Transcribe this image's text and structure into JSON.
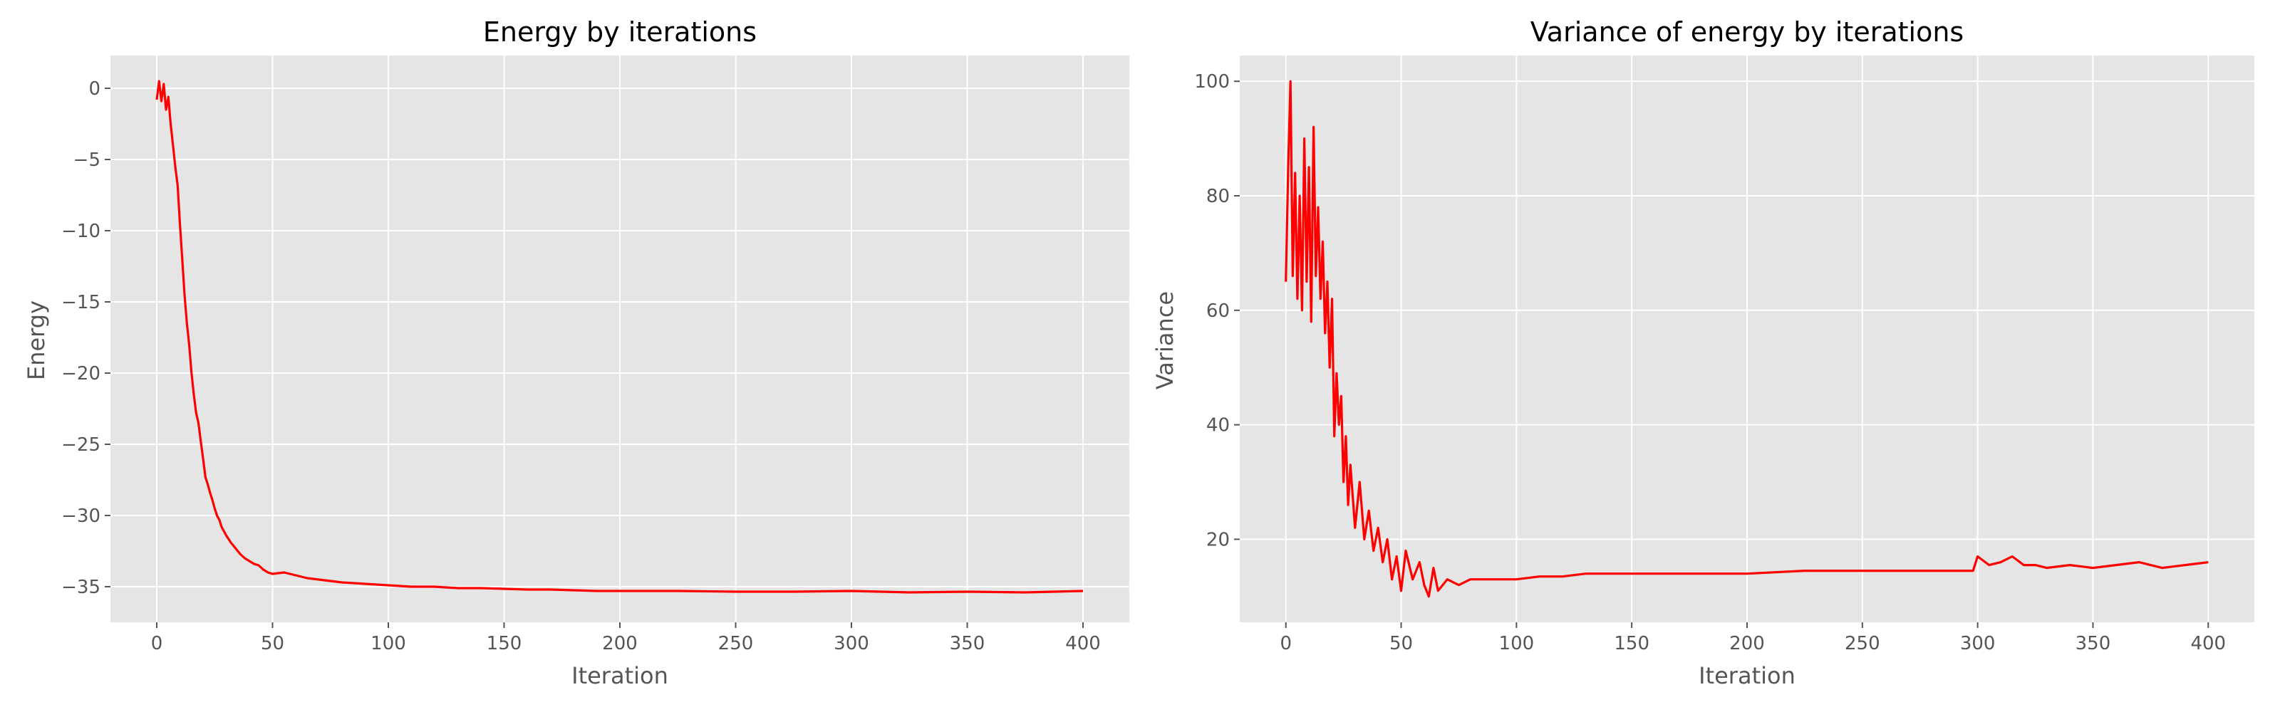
{
  "chart_data": [
    {
      "type": "line",
      "title": "Energy by iterations",
      "xlabel": "Iteration",
      "ylabel": "Energy",
      "xlim": [
        -20,
        420
      ],
      "ylim": [
        -37.5,
        2.3
      ],
      "xticks": [
        0,
        50,
        100,
        150,
        200,
        250,
        300,
        350,
        400
      ],
      "xtick_labels": [
        "0",
        "50",
        "100",
        "150",
        "200",
        "250",
        "300",
        "350",
        "400"
      ],
      "yticks": [
        0,
        -5,
        -10,
        -15,
        -20,
        -25,
        -30,
        -35
      ],
      "ytick_labels": [
        "0",
        "−5",
        "−10",
        "−15",
        "−20",
        "−25",
        "−30",
        "−35"
      ],
      "grid": true,
      "series": [
        {
          "color": "#ff0000",
          "x": [
            0,
            1,
            2,
            3,
            4,
            5,
            6,
            7,
            8,
            9,
            10,
            11,
            12,
            13,
            14,
            15,
            16,
            17,
            18,
            19,
            20,
            21,
            22,
            23,
            24,
            25,
            26,
            27,
            28,
            30,
            32,
            34,
            36,
            38,
            40,
            42,
            44,
            46,
            48,
            50,
            55,
            60,
            65,
            70,
            75,
            80,
            90,
            100,
            110,
            120,
            130,
            140,
            150,
            160,
            170,
            180,
            190,
            200,
            225,
            250,
            275,
            300,
            325,
            350,
            375,
            400
          ],
          "y": [
            -0.8,
            0.5,
            -0.9,
            0.3,
            -1.5,
            -0.6,
            -2.5,
            -4.0,
            -5.5,
            -6.8,
            -9.5,
            -12.0,
            -14.5,
            -16.5,
            -18.0,
            -20.0,
            -21.5,
            -22.8,
            -23.5,
            -24.8,
            -26.0,
            -27.3,
            -27.8,
            -28.4,
            -28.9,
            -29.5,
            -30.0,
            -30.3,
            -30.8,
            -31.4,
            -31.9,
            -32.3,
            -32.7,
            -33.0,
            -33.2,
            -33.4,
            -33.5,
            -33.8,
            -34.0,
            -34.1,
            -34.0,
            -34.2,
            -34.4,
            -34.5,
            -34.6,
            -34.7,
            -34.8,
            -34.9,
            -35.0,
            -35.0,
            -35.1,
            -35.1,
            -35.15,
            -35.2,
            -35.2,
            -35.25,
            -35.3,
            -35.3,
            -35.3,
            -35.35,
            -35.35,
            -35.3,
            -35.4,
            -35.35,
            -35.4,
            -35.3
          ]
        }
      ]
    },
    {
      "type": "line",
      "title": "Variance of energy by iterations",
      "xlabel": "Iteration",
      "ylabel": "Variance",
      "xlim": [
        -20,
        420
      ],
      "ylim": [
        5.5,
        104.5
      ],
      "xticks": [
        0,
        50,
        100,
        150,
        200,
        250,
        300,
        350,
        400
      ],
      "xtick_labels": [
        "0",
        "50",
        "100",
        "150",
        "200",
        "250",
        "300",
        "350",
        "400"
      ],
      "yticks": [
        20,
        40,
        60,
        80,
        100
      ],
      "ytick_labels": [
        "20",
        "40",
        "60",
        "80",
        "100"
      ],
      "grid": true,
      "series": [
        {
          "color": "#ff0000",
          "x": [
            0,
            1,
            2,
            3,
            4,
            5,
            6,
            7,
            8,
            9,
            10,
            11,
            12,
            13,
            14,
            15,
            16,
            17,
            18,
            19,
            20,
            21,
            22,
            23,
            24,
            25,
            26,
            27,
            28,
            30,
            32,
            34,
            36,
            38,
            40,
            42,
            44,
            46,
            48,
            50,
            52,
            55,
            58,
            60,
            62,
            64,
            66,
            70,
            75,
            80,
            90,
            100,
            110,
            120,
            130,
            140,
            150,
            160,
            170,
            180,
            190,
            200,
            225,
            250,
            275,
            298,
            300,
            305,
            310,
            315,
            320,
            325,
            330,
            340,
            350,
            360,
            370,
            380,
            390,
            400
          ],
          "y": [
            65,
            85,
            100,
            66,
            84,
            62,
            80,
            60,
            90,
            65,
            85,
            58,
            92,
            66,
            78,
            62,
            72,
            56,
            65,
            50,
            62,
            38,
            49,
            40,
            45,
            30,
            38,
            26,
            33,
            22,
            30,
            20,
            25,
            18,
            22,
            16,
            20,
            13,
            17,
            11,
            18,
            13,
            16,
            12,
            10,
            15,
            11,
            13,
            12,
            13,
            13,
            13,
            13.5,
            13.5,
            14,
            14,
            14,
            14,
            14,
            14,
            14,
            14,
            14.5,
            14.5,
            14.5,
            14.5,
            17,
            15.5,
            16,
            17,
            15.5,
            15.5,
            15,
            15.5,
            15,
            15.5,
            16,
            15,
            15.5,
            16
          ]
        }
      ]
    }
  ]
}
